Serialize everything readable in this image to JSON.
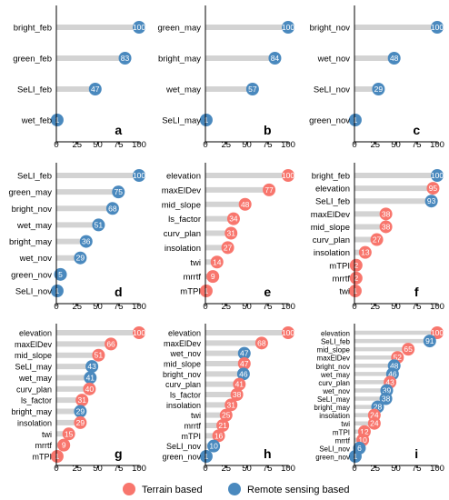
{
  "colors": {
    "terrain": "#F8766D",
    "remote": "#4A89BE",
    "bar": "#D3D3D3",
    "axis": "#000000"
  },
  "legend": {
    "placement": "bottom",
    "items": [
      {
        "label": "Terrain based",
        "group": "terrain"
      },
      {
        "label": "Remote sensing based",
        "group": "remote"
      }
    ]
  },
  "chart_data": [
    {
      "type": "lollipop",
      "panel": "a",
      "xlim": [
        0,
        100
      ],
      "x_ticks": [
        0,
        25,
        50,
        75,
        100
      ],
      "categories": [
        "bright_feb",
        "green_feb",
        "SeLI_feb",
        "wet_feb"
      ],
      "values": [
        100,
        83,
        47,
        1
      ],
      "groups": [
        "remote",
        "remote",
        "remote",
        "remote"
      ]
    },
    {
      "type": "lollipop",
      "panel": "b",
      "xlim": [
        0,
        100
      ],
      "x_ticks": [
        0,
        25,
        50,
        75,
        100
      ],
      "categories": [
        "green_may",
        "bright_may",
        "wet_may",
        "SeLI_may"
      ],
      "values": [
        100,
        84,
        57,
        1
      ],
      "groups": [
        "remote",
        "remote",
        "remote",
        "remote"
      ]
    },
    {
      "type": "lollipop",
      "panel": "c",
      "xlim": [
        0,
        100
      ],
      "x_ticks": [
        0,
        25,
        50,
        75,
        100
      ],
      "categories": [
        "bright_nov",
        "wet_nov",
        "SeLI_nov",
        "green_nov"
      ],
      "values": [
        100,
        48,
        29,
        1
      ],
      "groups": [
        "remote",
        "remote",
        "remote",
        "remote"
      ]
    },
    {
      "type": "lollipop",
      "panel": "d",
      "xlim": [
        0,
        100
      ],
      "x_ticks": [
        0,
        25,
        50,
        75,
        100
      ],
      "categories": [
        "SeLI_feb",
        "green_may",
        "bright_nov",
        "wet_may",
        "bright_may",
        "wet_nov",
        "green_nov",
        "SeLI_nov"
      ],
      "values": [
        100,
        75,
        68,
        51,
        36,
        29,
        5,
        1
      ],
      "groups": [
        "remote",
        "remote",
        "remote",
        "remote",
        "remote",
        "remote",
        "remote",
        "remote"
      ]
    },
    {
      "type": "lollipop",
      "panel": "e",
      "xlim": [
        0,
        100
      ],
      "x_ticks": [
        0,
        25,
        50,
        75,
        100
      ],
      "categories": [
        "elevation",
        "maxElDev",
        "mid_slope",
        "ls_factor",
        "curv_plan",
        "insolation",
        "twi",
        "mrrtf",
        "mTPI"
      ],
      "values": [
        100,
        77,
        48,
        34,
        31,
        27,
        14,
        9,
        1
      ],
      "groups": [
        "terrain",
        "terrain",
        "terrain",
        "terrain",
        "terrain",
        "terrain",
        "terrain",
        "terrain",
        "terrain"
      ]
    },
    {
      "type": "lollipop",
      "panel": "f",
      "xlim": [
        0,
        100
      ],
      "x_ticks": [
        0,
        25,
        50,
        75,
        100
      ],
      "categories": [
        "bright_feb",
        "elevation",
        "SeLI_feb",
        "maxElDev",
        "mid_slope",
        "curv_plan",
        "insolation",
        "mTPI",
        "mrrtf",
        "twi"
      ],
      "values": [
        100,
        95,
        93,
        38,
        38,
        27,
        13,
        2,
        2,
        1
      ],
      "groups": [
        "remote",
        "terrain",
        "remote",
        "terrain",
        "terrain",
        "terrain",
        "terrain",
        "terrain",
        "terrain",
        "terrain"
      ]
    },
    {
      "type": "lollipop",
      "panel": "g",
      "xlim": [
        0,
        100
      ],
      "x_ticks": [
        0,
        25,
        50,
        75,
        100
      ],
      "categories": [
        "elevation",
        "maxElDev",
        "mid_slope",
        "SeLI_may",
        "wet_may",
        "curv_plan",
        "ls_factor",
        "bright_may",
        "insolation",
        "twi",
        "mrrtf",
        "mTPI"
      ],
      "values": [
        100,
        66,
        51,
        43,
        41,
        40,
        31,
        29,
        29,
        15,
        9,
        1
      ],
      "groups": [
        "terrain",
        "terrain",
        "terrain",
        "remote",
        "remote",
        "terrain",
        "terrain",
        "remote",
        "terrain",
        "terrain",
        "terrain",
        "terrain"
      ]
    },
    {
      "type": "lollipop",
      "panel": "h",
      "xlim": [
        0,
        100
      ],
      "x_ticks": [
        0,
        25,
        50,
        75,
        100
      ],
      "categories": [
        "elevation",
        "maxElDev",
        "wet_nov",
        "mid_slope",
        "bright_nov",
        "curv_plan",
        "ls_factor",
        "insolation",
        "twi",
        "mrrtf",
        "mTPI",
        "SeLI_nov",
        "green_nov"
      ],
      "values": [
        100,
        68,
        47,
        47,
        46,
        41,
        38,
        31,
        25,
        21,
        16,
        10,
        1
      ],
      "groups": [
        "terrain",
        "terrain",
        "remote",
        "terrain",
        "remote",
        "terrain",
        "terrain",
        "terrain",
        "terrain",
        "terrain",
        "terrain",
        "remote",
        "remote"
      ]
    },
    {
      "type": "lollipop",
      "panel": "i",
      "xlim": [
        0,
        100
      ],
      "x_ticks": [
        0,
        25,
        50,
        75,
        100
      ],
      "categories": [
        "elevation",
        "SeLI_feb",
        "mid_slope",
        "maxElDev",
        "bright_nov",
        "wet_may",
        "curv_plan",
        "wet_nov",
        "SeLI_may",
        "bright_may",
        "insolation",
        "twi",
        "mTPI",
        "mrrtf",
        "SeLI_nov",
        "green_nov"
      ],
      "values": [
        100,
        91,
        65,
        52,
        48,
        46,
        43,
        39,
        38,
        28,
        24,
        24,
        12,
        10,
        6,
        1
      ],
      "groups": [
        "terrain",
        "remote",
        "terrain",
        "terrain",
        "remote",
        "remote",
        "terrain",
        "remote",
        "remote",
        "remote",
        "terrain",
        "terrain",
        "terrain",
        "terrain",
        "remote",
        "remote"
      ]
    }
  ]
}
